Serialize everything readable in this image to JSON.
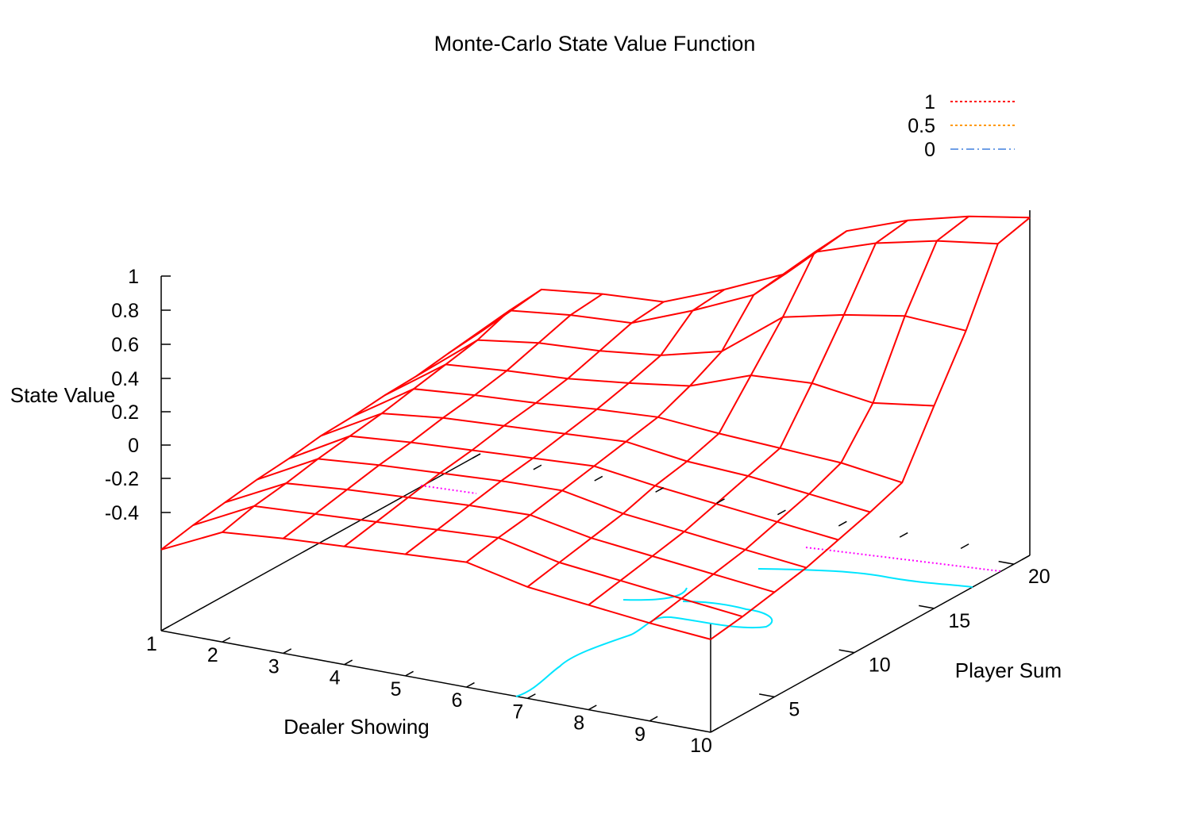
{
  "chart_data": {
    "type": "surface",
    "title": "Monte-Carlo State Value Function",
    "xlabel": "Dealer Showing",
    "ylabel": "Player Sum",
    "zlabel": "State Value",
    "x_ticks": [
      "1",
      "2",
      "3",
      "4",
      "5",
      "6",
      "7",
      "8",
      "9",
      "10"
    ],
    "y_ticks": [
      "5",
      "10",
      "15",
      "20"
    ],
    "z_ticks": [
      "1",
      "0.8",
      "0.6",
      "0.4",
      "0.2",
      "0",
      "-0.2",
      "-0.4"
    ],
    "xlim": [
      1,
      10
    ],
    "ylim": [
      1,
      21
    ],
    "zlim": [
      -0.4,
      1
    ],
    "grid": false,
    "legend_position": "top-right",
    "surface_color": "#ff0000",
    "x": [
      1,
      2,
      3,
      4,
      5,
      6,
      7,
      8,
      9,
      10
    ],
    "y": [
      1,
      3,
      5,
      7,
      9,
      11,
      13,
      15,
      17,
      19,
      21
    ],
    "values": [
      [
        -0.62,
        -0.58,
        -0.55,
        -0.52,
        -0.5,
        -0.47,
        -0.46,
        -0.44,
        -0.43,
        -0.4,
        -0.38
      ],
      [
        -0.45,
        -0.4,
        -0.37,
        -0.33,
        -0.3,
        -0.27,
        -0.23,
        -0.19,
        -0.15,
        -0.08,
        -0.06
      ],
      [
        -0.42,
        -0.38,
        -0.34,
        -0.3,
        -0.27,
        -0.23,
        -0.2,
        -0.16,
        -0.1,
        -0.04,
        -0.02
      ],
      [
        -0.4,
        -0.36,
        -0.32,
        -0.28,
        -0.25,
        -0.21,
        -0.18,
        -0.14,
        -0.08,
        -0.02,
        0.0
      ],
      [
        -0.38,
        -0.34,
        -0.3,
        -0.26,
        -0.23,
        -0.19,
        -0.15,
        -0.1,
        -0.04,
        0.12,
        0.14
      ],
      [
        -0.36,
        -0.32,
        -0.29,
        -0.25,
        -0.21,
        -0.17,
        -0.13,
        -0.05,
        0.05,
        0.28,
        0.3
      ],
      [
        -0.44,
        -0.4,
        -0.36,
        -0.32,
        -0.26,
        -0.22,
        -0.16,
        0.08,
        0.32,
        0.6,
        0.62
      ],
      [
        -0.48,
        -0.44,
        -0.4,
        -0.36,
        -0.3,
        -0.24,
        -0.18,
        0.1,
        0.4,
        0.72,
        0.75
      ],
      [
        -0.52,
        -0.48,
        -0.44,
        -0.4,
        -0.34,
        -0.28,
        -0.2,
        0.05,
        0.46,
        0.8,
        0.84
      ],
      [
        -0.55,
        -0.52,
        -0.48,
        -0.44,
        -0.38,
        -0.32,
        -0.25,
        0.1,
        0.44,
        0.85,
        0.9
      ]
    ],
    "series": [
      {
        "name": "1",
        "color": "#ff00ff",
        "dash": "dotted"
      },
      {
        "name": "0.5",
        "color": "#ff9900",
        "dash": "dotted"
      },
      {
        "name": "0",
        "color": "#00e5ff",
        "dash": "dash-dot"
      }
    ]
  }
}
